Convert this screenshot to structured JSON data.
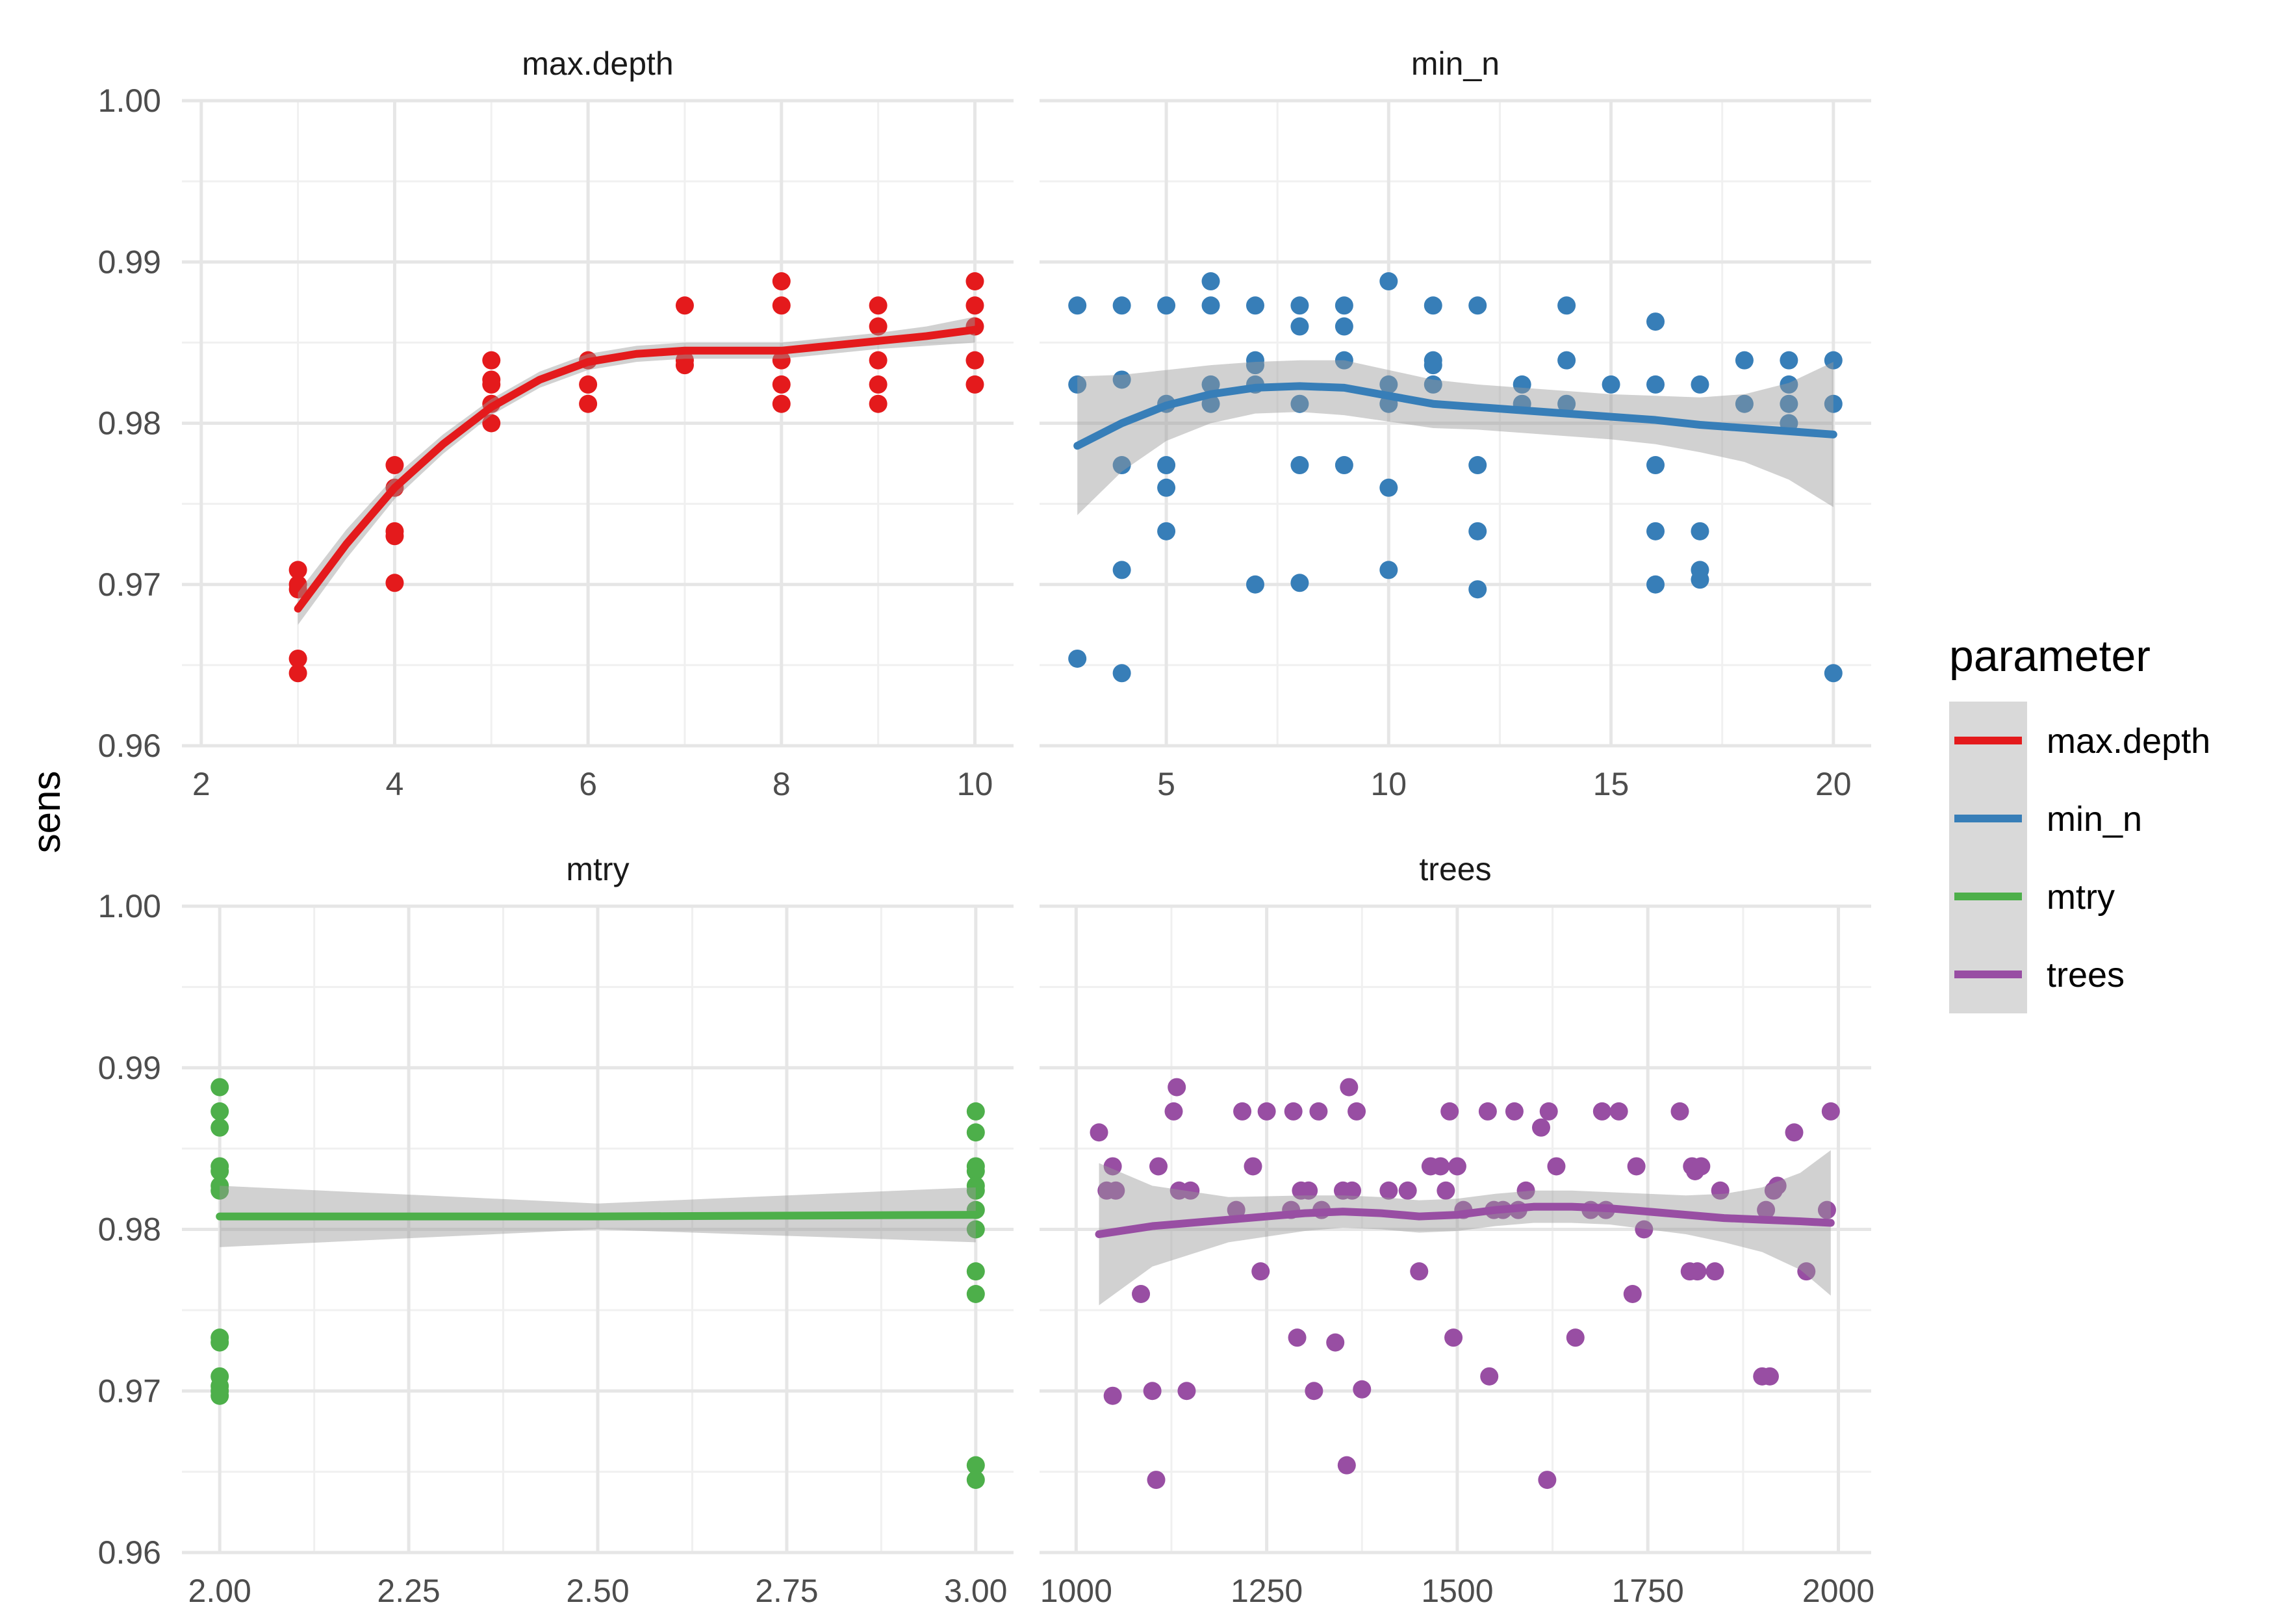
{
  "chart_data": {
    "type": "scatter",
    "ylabel": "sens",
    "legend": {
      "title": "parameter",
      "position": "right",
      "entries": [
        {
          "name": "max.depth",
          "color": "#E41A1C"
        },
        {
          "name": "min_n",
          "color": "#377EB8"
        },
        {
          "name": "mtry",
          "color": "#4DAF4A"
        },
        {
          "name": "trees",
          "color": "#984EA3"
        }
      ]
    },
    "ylim": [
      0.96,
      1.0
    ],
    "yticks": [
      "0.96",
      "0.97",
      "0.98",
      "0.99",
      "1.00"
    ],
    "grid": true,
    "panels": [
      {
        "name": "max.depth",
        "color": "#E41A1C",
        "xlim": [
          1.8,
          10.4
        ],
        "xticks": [
          2,
          4,
          6,
          8,
          10
        ],
        "xtick_labels": [
          "2",
          "4",
          "6",
          "8",
          "10"
        ],
        "points": [
          [
            3,
            0.9709
          ],
          [
            3,
            0.97
          ],
          [
            3,
            0.9697
          ],
          [
            3,
            0.9654
          ],
          [
            3,
            0.9645
          ],
          [
            4,
            0.9774
          ],
          [
            4,
            0.976
          ],
          [
            4,
            0.9733
          ],
          [
            4,
            0.973
          ],
          [
            4,
            0.9701
          ],
          [
            5,
            0.9839
          ],
          [
            5,
            0.9827
          ],
          [
            5,
            0.9824
          ],
          [
            5,
            0.9812
          ],
          [
            5,
            0.98
          ],
          [
            6,
            0.9839
          ],
          [
            6,
            0.9824
          ],
          [
            6,
            0.9812
          ],
          [
            7,
            0.9873
          ],
          [
            7,
            0.9839
          ],
          [
            7,
            0.9836
          ],
          [
            8,
            0.9888
          ],
          [
            8,
            0.9873
          ],
          [
            8,
            0.9839
          ],
          [
            8,
            0.9824
          ],
          [
            8,
            0.9812
          ],
          [
            9,
            0.9873
          ],
          [
            9,
            0.986
          ],
          [
            9,
            0.9839
          ],
          [
            9,
            0.9824
          ],
          [
            9,
            0.9812
          ],
          [
            10,
            0.9888
          ],
          [
            10,
            0.9873
          ],
          [
            10,
            0.986
          ],
          [
            10,
            0.9839
          ],
          [
            10,
            0.9824
          ]
        ],
        "smooth": [
          [
            3,
            0.9685
          ],
          [
            3.5,
            0.9725
          ],
          [
            4,
            0.976
          ],
          [
            4.5,
            0.9787
          ],
          [
            5,
            0.981
          ],
          [
            5.5,
            0.9827
          ],
          [
            6,
            0.9838
          ],
          [
            6.5,
            0.9843
          ],
          [
            7,
            0.9845
          ],
          [
            7.5,
            0.9845
          ],
          [
            8,
            0.9845
          ],
          [
            8.5,
            0.9848
          ],
          [
            9,
            0.9851
          ],
          [
            9.5,
            0.9854
          ],
          [
            10,
            0.9858
          ]
        ],
        "band": [
          0.001,
          0.0009,
          0.0007,
          0.0006,
          0.0005,
          0.0005,
          0.0005,
          0.0005,
          0.0005,
          0.0005,
          0.0005,
          0.0005,
          0.0005,
          0.0006,
          0.0008
        ]
      },
      {
        "name": "min_n",
        "color": "#377EB8",
        "xlim": [
          2.15,
          20.85
        ],
        "xticks": [
          5,
          10,
          15,
          20
        ],
        "xtick_labels": [
          "5",
          "10",
          "15",
          "20"
        ],
        "points": [
          [
            3,
            0.9873
          ],
          [
            3,
            0.9824
          ],
          [
            3,
            0.9654
          ],
          [
            4,
            0.9873
          ],
          [
            4,
            0.9827
          ],
          [
            4,
            0.9774
          ],
          [
            4,
            0.9709
          ],
          [
            4,
            0.9645
          ],
          [
            5,
            0.9873
          ],
          [
            5,
            0.9812
          ],
          [
            5,
            0.9774
          ],
          [
            5,
            0.976
          ],
          [
            5,
            0.9733
          ],
          [
            6,
            0.9888
          ],
          [
            6,
            0.9873
          ],
          [
            6,
            0.9824
          ],
          [
            6,
            0.9812
          ],
          [
            7,
            0.9873
          ],
          [
            7,
            0.9839
          ],
          [
            7,
            0.9836
          ],
          [
            7,
            0.9824
          ],
          [
            7,
            0.97
          ],
          [
            8,
            0.9873
          ],
          [
            8,
            0.986
          ],
          [
            8,
            0.9812
          ],
          [
            8,
            0.9774
          ],
          [
            8,
            0.9701
          ],
          [
            9,
            0.9873
          ],
          [
            9,
            0.986
          ],
          [
            9,
            0.9839
          ],
          [
            9,
            0.9774
          ],
          [
            10,
            0.9888
          ],
          [
            10,
            0.9824
          ],
          [
            10,
            0.9812
          ],
          [
            10,
            0.976
          ],
          [
            10,
            0.9709
          ],
          [
            11,
            0.9873
          ],
          [
            11,
            0.9839
          ],
          [
            11,
            0.9836
          ],
          [
            11,
            0.9824
          ],
          [
            12,
            0.9873
          ],
          [
            12,
            0.9774
          ],
          [
            12,
            0.9733
          ],
          [
            12,
            0.9697
          ],
          [
            13,
            0.9824
          ],
          [
            13,
            0.9812
          ],
          [
            14,
            0.9873
          ],
          [
            14,
            0.9839
          ],
          [
            14,
            0.9812
          ],
          [
            15,
            0.9824
          ],
          [
            16,
            0.9863
          ],
          [
            16,
            0.9824
          ],
          [
            16,
            0.9774
          ],
          [
            16,
            0.9733
          ],
          [
            16,
            0.97
          ],
          [
            17,
            0.9824
          ],
          [
            17,
            0.9733
          ],
          [
            17,
            0.9709
          ],
          [
            17,
            0.9703
          ],
          [
            18,
            0.9839
          ],
          [
            18,
            0.9812
          ],
          [
            19,
            0.9839
          ],
          [
            19,
            0.9824
          ],
          [
            19,
            0.9812
          ],
          [
            19,
            0.98
          ],
          [
            20,
            0.9839
          ],
          [
            20,
            0.9812
          ],
          [
            20,
            0.9645
          ]
        ],
        "smooth": [
          [
            3,
            0.9786
          ],
          [
            4,
            0.98
          ],
          [
            5,
            0.9811
          ],
          [
            6,
            0.9818
          ],
          [
            7,
            0.9822
          ],
          [
            8,
            0.9823
          ],
          [
            9,
            0.9822
          ],
          [
            10,
            0.9817
          ],
          [
            11,
            0.9812
          ],
          [
            12,
            0.981
          ],
          [
            13,
            0.9808
          ],
          [
            14,
            0.9806
          ],
          [
            15,
            0.9804
          ],
          [
            16,
            0.9802
          ],
          [
            17,
            0.9799
          ],
          [
            18,
            0.9797
          ],
          [
            19,
            0.9795
          ],
          [
            20,
            0.9793
          ]
        ],
        "band": [
          0.0043,
          0.003,
          0.0022,
          0.0018,
          0.0016,
          0.0016,
          0.0017,
          0.0016,
          0.0015,
          0.0014,
          0.0014,
          0.0014,
          0.0014,
          0.0015,
          0.0017,
          0.0021,
          0.003,
          0.0045
        ]
      },
      {
        "name": "mtry",
        "color": "#4DAF4A",
        "xlim": [
          1.95,
          3.05
        ],
        "xticks": [
          2.0,
          2.25,
          2.5,
          2.75,
          3.0
        ],
        "xtick_labels": [
          "2.00",
          "2.25",
          "2.50",
          "2.75",
          "3.00"
        ],
        "points": [
          [
            2,
            0.9888
          ],
          [
            2,
            0.9873
          ],
          [
            2,
            0.9863
          ],
          [
            2,
            0.9839
          ],
          [
            2,
            0.9836
          ],
          [
            2,
            0.9827
          ],
          [
            2,
            0.9824
          ],
          [
            2,
            0.9733
          ],
          [
            2,
            0.973
          ],
          [
            2,
            0.9709
          ],
          [
            2,
            0.9703
          ],
          [
            2,
            0.97
          ],
          [
            2,
            0.9697
          ],
          [
            3,
            0.9873
          ],
          [
            3,
            0.986
          ],
          [
            3,
            0.9839
          ],
          [
            3,
            0.9836
          ],
          [
            3,
            0.9827
          ],
          [
            3,
            0.9824
          ],
          [
            3,
            0.9812
          ],
          [
            3,
            0.98
          ],
          [
            3,
            0.9774
          ],
          [
            3,
            0.976
          ],
          [
            3,
            0.9654
          ],
          [
            3,
            0.9645
          ]
        ],
        "smooth": [
          [
            2,
            0.9808
          ],
          [
            2.5,
            0.9808
          ],
          [
            3,
            0.9809
          ]
        ],
        "band": [
          0.0019,
          0.0008,
          0.0017
        ]
      },
      {
        "name": "trees",
        "color": "#984EA3",
        "xlim": [
          952,
          2043
        ],
        "xticks": [
          1000,
          1250,
          1500,
          1750,
          2000
        ],
        "xtick_labels": [
          "1000",
          "1250",
          "1500",
          "1750",
          "2000"
        ],
        "points": [
          [
            1030,
            0.986
          ],
          [
            1040,
            0.9824
          ],
          [
            1048,
            0.9839
          ],
          [
            1048,
            0.9697
          ],
          [
            1052,
            0.9824
          ],
          [
            1085,
            0.976
          ],
          [
            1100,
            0.97
          ],
          [
            1105,
            0.9645
          ],
          [
            1108,
            0.9839
          ],
          [
            1128,
            0.9873
          ],
          [
            1132,
            0.9888
          ],
          [
            1135,
            0.9824
          ],
          [
            1145,
            0.97
          ],
          [
            1150,
            0.9824
          ],
          [
            1210,
            0.9812
          ],
          [
            1218,
            0.9873
          ],
          [
            1232,
            0.9839
          ],
          [
            1242,
            0.9774
          ],
          [
            1250,
            0.9873
          ],
          [
            1282,
            0.9812
          ],
          [
            1285,
            0.9873
          ],
          [
            1290,
            0.9733
          ],
          [
            1295,
            0.9824
          ],
          [
            1305,
            0.9824
          ],
          [
            1312,
            0.97
          ],
          [
            1318,
            0.9873
          ],
          [
            1322,
            0.9812
          ],
          [
            1340,
            0.973
          ],
          [
            1350,
            0.9824
          ],
          [
            1355,
            0.9654
          ],
          [
            1358,
            0.9888
          ],
          [
            1362,
            0.9824
          ],
          [
            1368,
            0.9873
          ],
          [
            1375,
            0.9701
          ],
          [
            1410,
            0.9824
          ],
          [
            1435,
            0.9824
          ],
          [
            1450,
            0.9774
          ],
          [
            1465,
            0.9839
          ],
          [
            1478,
            0.9839
          ],
          [
            1485,
            0.9824
          ],
          [
            1490,
            0.9873
          ],
          [
            1495,
            0.9733
          ],
          [
            1500,
            0.9839
          ],
          [
            1508,
            0.9812
          ],
          [
            1540,
            0.9873
          ],
          [
            1542,
            0.9709
          ],
          [
            1548,
            0.9812
          ],
          [
            1560,
            0.9812
          ],
          [
            1575,
            0.9873
          ],
          [
            1580,
            0.9812
          ],
          [
            1590,
            0.9824
          ],
          [
            1610,
            0.9863
          ],
          [
            1618,
            0.9645
          ],
          [
            1620,
            0.9873
          ],
          [
            1630,
            0.9839
          ],
          [
            1655,
            0.9733
          ],
          [
            1675,
            0.9812
          ],
          [
            1690,
            0.9873
          ],
          [
            1695,
            0.9812
          ],
          [
            1712,
            0.9873
          ],
          [
            1730,
            0.976
          ],
          [
            1735,
            0.9839
          ],
          [
            1745,
            0.98
          ],
          [
            1792,
            0.9873
          ],
          [
            1805,
            0.9774
          ],
          [
            1808,
            0.9839
          ],
          [
            1812,
            0.9836
          ],
          [
            1815,
            0.9774
          ],
          [
            1820,
            0.9839
          ],
          [
            1838,
            0.9774
          ],
          [
            1845,
            0.9824
          ],
          [
            1900,
            0.9709
          ],
          [
            1905,
            0.9812
          ],
          [
            1910,
            0.9709
          ],
          [
            1915,
            0.9824
          ],
          [
            1920,
            0.9827
          ],
          [
            1942,
            0.986
          ],
          [
            1958,
            0.9774
          ],
          [
            1985,
            0.9812
          ],
          [
            1990,
            0.9873
          ]
        ],
        "smooth": [
          [
            1030,
            0.9797
          ],
          [
            1100,
            0.9802
          ],
          [
            1200,
            0.9806
          ],
          [
            1300,
            0.981
          ],
          [
            1350,
            0.9811
          ],
          [
            1400,
            0.981
          ],
          [
            1450,
            0.9808
          ],
          [
            1500,
            0.9809
          ],
          [
            1550,
            0.9812
          ],
          [
            1600,
            0.9814
          ],
          [
            1650,
            0.9814
          ],
          [
            1700,
            0.9813
          ],
          [
            1750,
            0.9811
          ],
          [
            1800,
            0.9809
          ],
          [
            1850,
            0.9807
          ],
          [
            1900,
            0.9806
          ],
          [
            1950,
            0.9805
          ],
          [
            1990,
            0.9804
          ]
        ],
        "band": [
          0.0044,
          0.0025,
          0.0014,
          0.0011,
          0.001,
          0.001,
          0.001,
          0.001,
          0.001,
          0.001,
          0.001,
          0.001,
          0.0011,
          0.0012,
          0.0015,
          0.002,
          0.003,
          0.0045
        ]
      }
    ]
  }
}
